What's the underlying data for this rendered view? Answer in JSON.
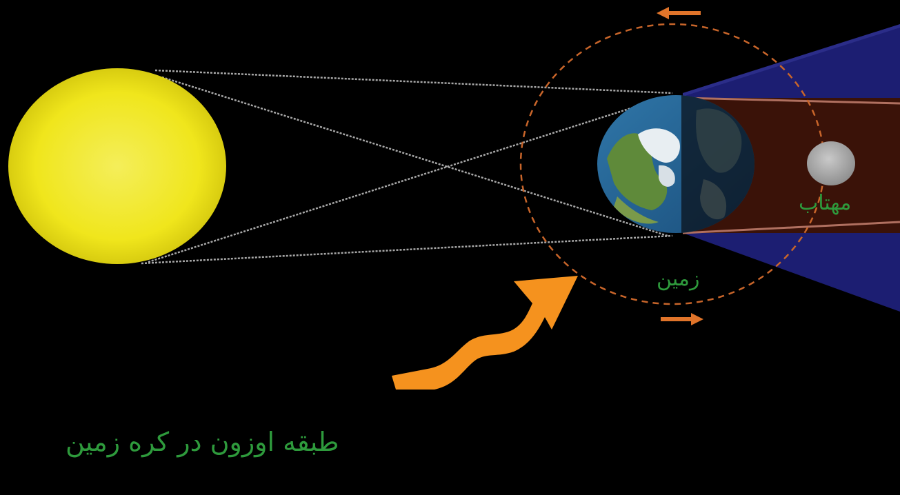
{
  "labels": {
    "moon": "مهتاب",
    "earth": "زمین",
    "caption": "طبقه اوزون در کره زمین"
  },
  "colors": {
    "background": "#000000",
    "label_text": "#2e9a3c",
    "sun": "#f2ea1c",
    "umbra": "#3a1208",
    "penumbra": "#1a1c6e",
    "orbit": "#c8652a",
    "arrow": "#f5921e",
    "rays": "#9a9a9a"
  },
  "icons": {
    "sun": "sun-icon",
    "earth": "earth-globe-icon",
    "moon": "moon-icon",
    "arrow": "sunlight-arrow-icon"
  }
}
